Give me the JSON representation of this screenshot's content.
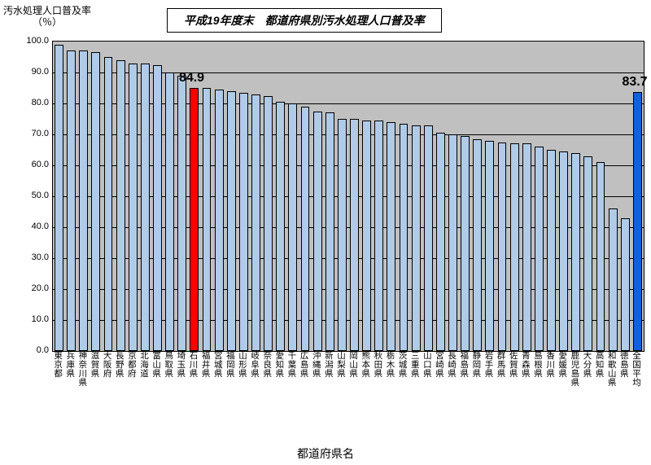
{
  "title": "平成19年度末　都道府県別汚水処理人口普及率",
  "y_axis_title_line1": "汚水処理人口普及率",
  "y_axis_title_line2": "（％）",
  "x_axis_title": "都道府県名",
  "plot": {
    "background_color": "#c0c0c0",
    "grid_color": "#000000",
    "ylim_min": 0,
    "ylim_max": 100,
    "ytick_step": 10,
    "bar_fill": "#b0cbe8",
    "bar_border": "#000000",
    "highlight1_fill": "#ff0000",
    "highlight2_fill": "#1060e0"
  },
  "callouts": {
    "c1": {
      "label": "84.9",
      "x_index": 11,
      "color": "#000000"
    },
    "c2": {
      "label": "83.7",
      "x_index": 47,
      "color": "#000000"
    }
  },
  "categories": [
    "東京都",
    "兵庫県",
    "神奈川県",
    "滋賀県",
    "大阪府",
    "長野県",
    "京都府",
    "北海道",
    "富山県",
    "鳥取県",
    "埼玉県",
    "石川県",
    "福井県",
    "宮城県",
    "福岡県",
    "山形県",
    "岐阜県",
    "奈良県",
    "愛知県",
    "千葉県",
    "広島県",
    "沖縄県",
    "新潟県",
    "山梨県",
    "岡山県",
    "熊本県",
    "秋田県",
    "栃木県",
    "茨城県",
    "三重県",
    "山口県",
    "宮崎県",
    "長崎県",
    "福島県",
    "静岡県",
    "岩手県",
    "群馬県",
    "佐賀県",
    "青森県",
    "島根県",
    "香川県",
    "愛媛県",
    "鹿児島県",
    "大分県",
    "高知県",
    "和歌山県",
    "徳島県",
    "全国平均"
  ],
  "values": [
    99,
    97,
    97,
    96.5,
    95,
    94,
    93,
    93,
    92.5,
    90,
    89,
    84.9,
    85,
    84.5,
    84,
    83.5,
    83,
    82.5,
    80.5,
    80,
    79,
    77.5,
    77,
    75,
    75,
    74.5,
    74.5,
    74,
    73.5,
    73,
    73,
    70.5,
    70,
    69.5,
    68.5,
    68,
    67.5,
    67,
    67,
    66,
    65,
    64.5,
    64,
    63,
    61,
    46,
    43,
    83.7
  ],
  "highlight_indices": {
    "red": 11,
    "blue": 47
  }
}
